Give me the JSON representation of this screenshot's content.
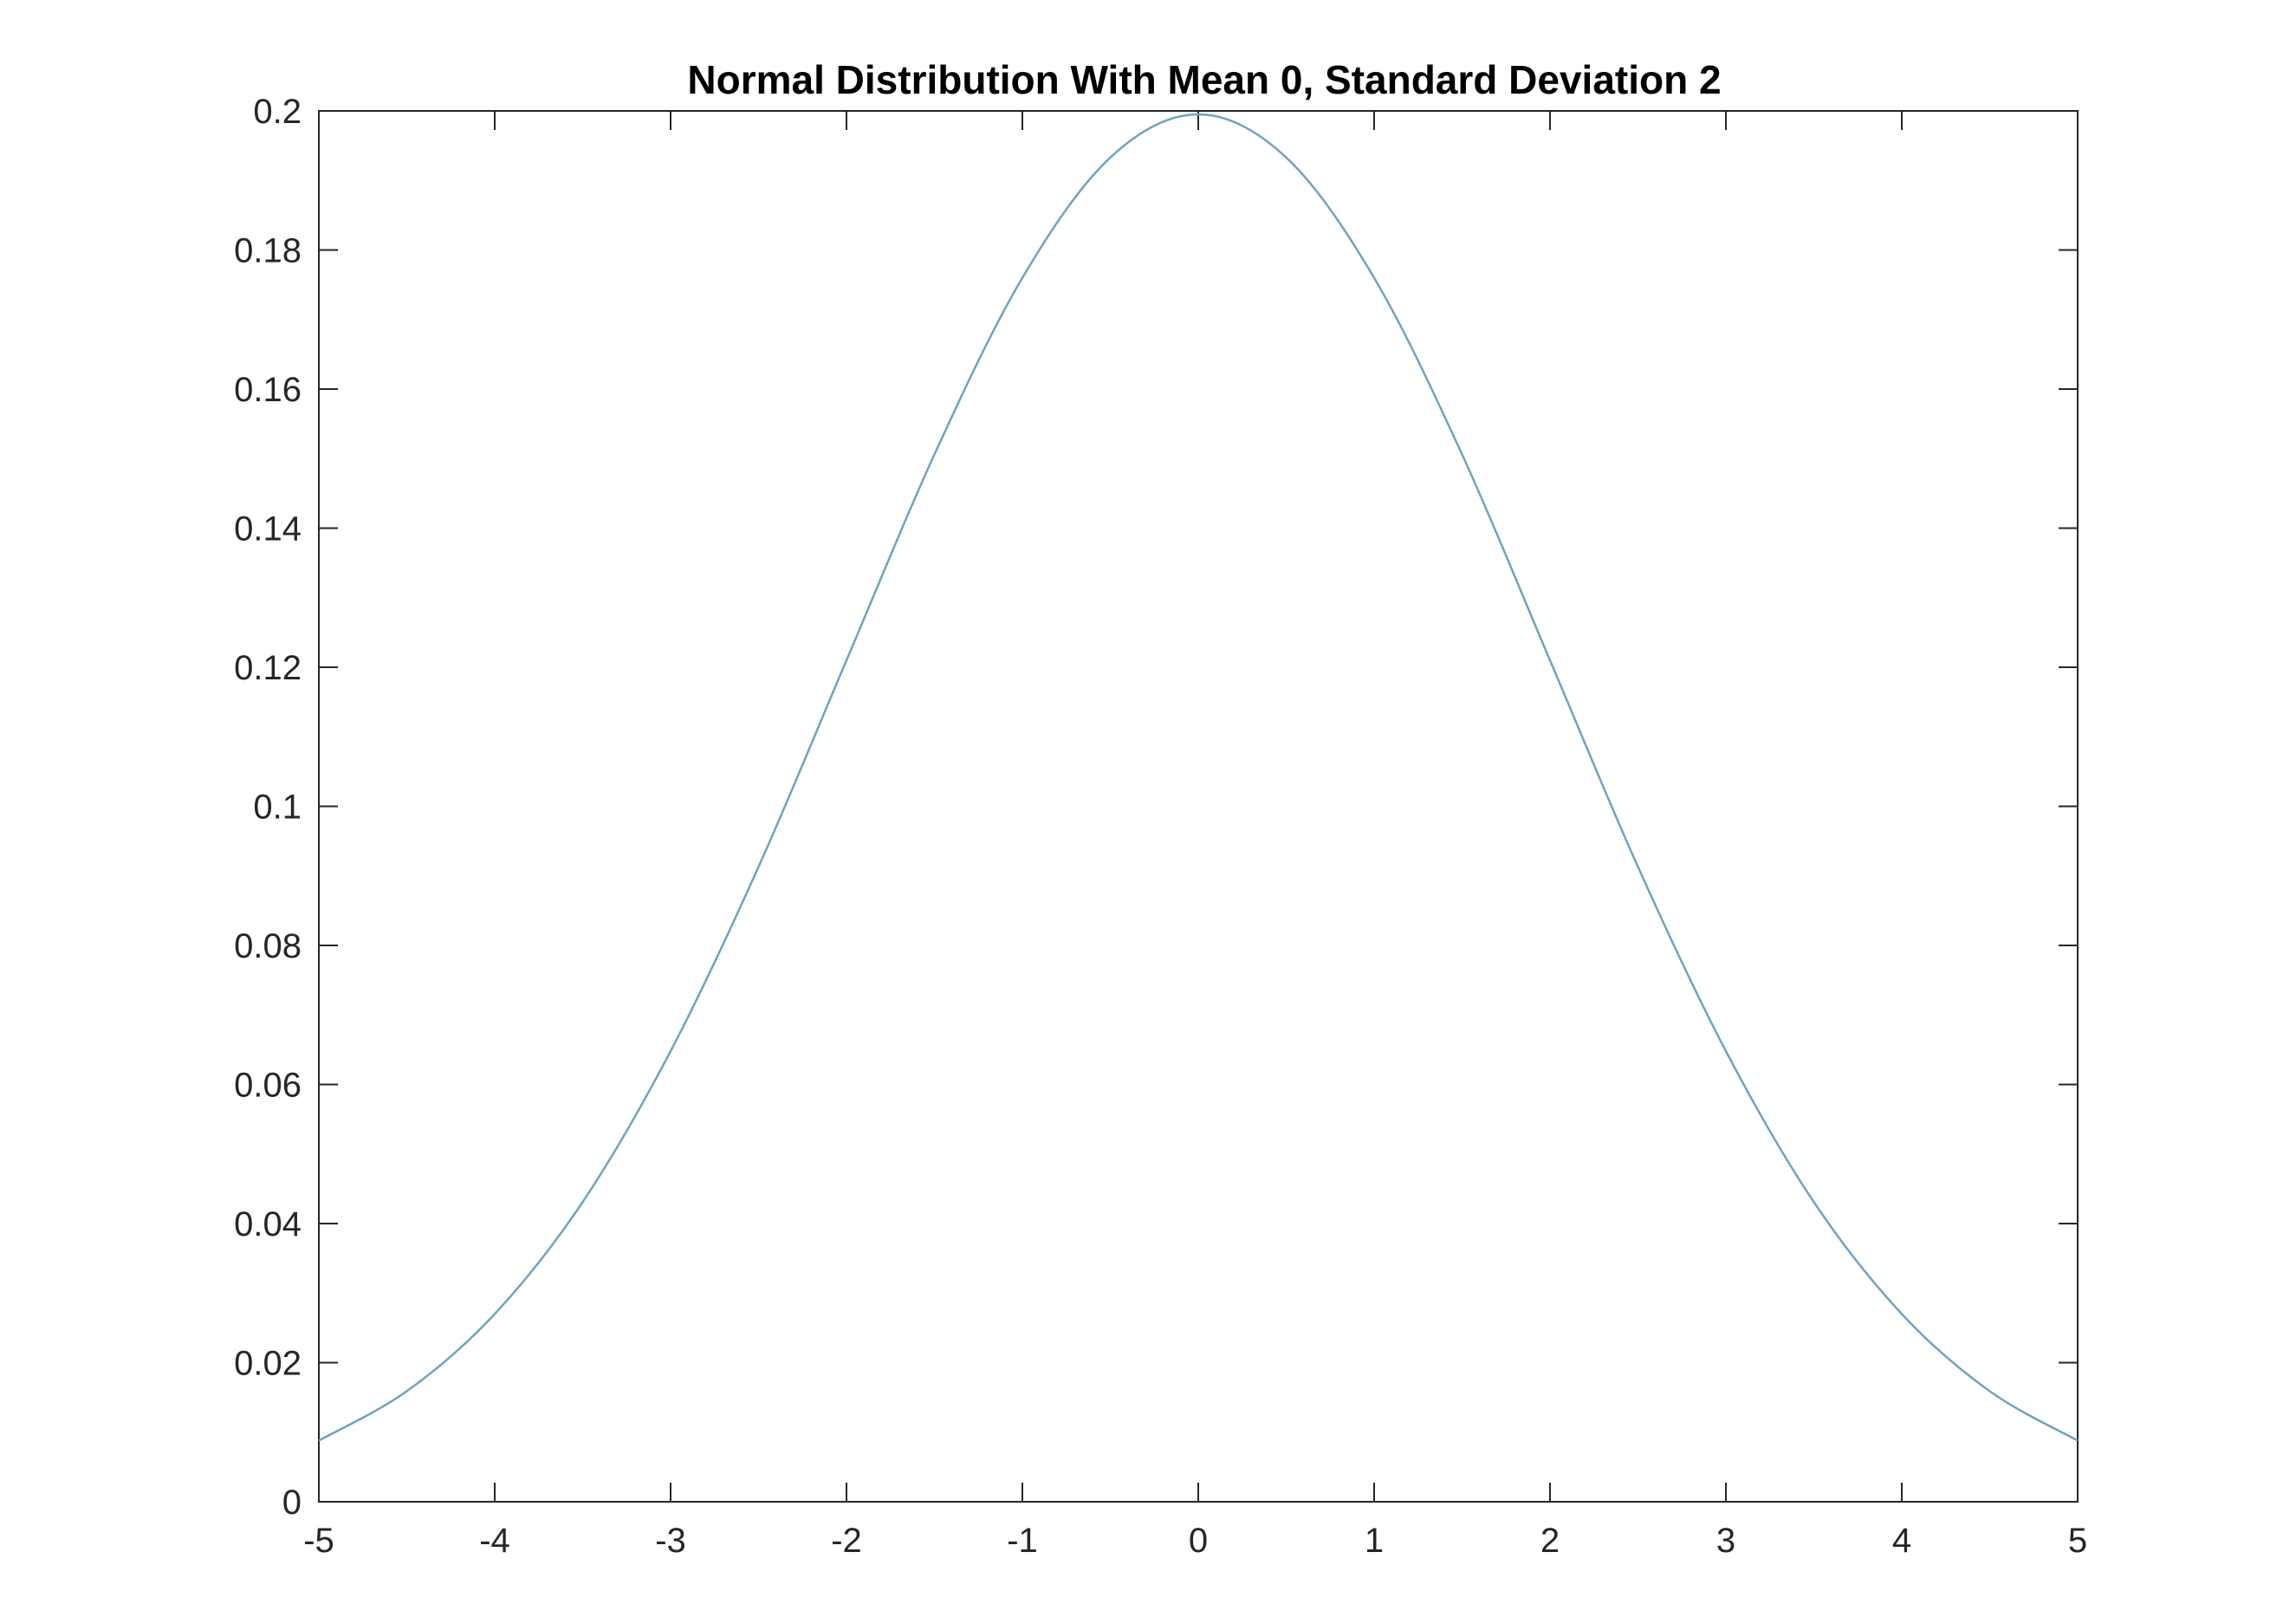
{
  "chart_data": {
    "type": "line",
    "title": "Normal Distribution With Mean 0, Standard Deviation 2",
    "xlabel": "",
    "ylabel": "",
    "xlim": [
      -5,
      5
    ],
    "ylim": [
      0,
      0.2
    ],
    "xticks": [
      -5,
      -4,
      -3,
      -2,
      -1,
      0,
      1,
      2,
      3,
      4,
      5
    ],
    "xtick_labels": [
      "-5",
      "-4",
      "-3",
      "-2",
      "-1",
      "0",
      "1",
      "2",
      "3",
      "4",
      "5"
    ],
    "yticks": [
      0,
      0.02,
      0.04,
      0.06,
      0.08,
      0.1,
      0.12,
      0.14,
      0.16,
      0.18,
      0.2
    ],
    "ytick_labels": [
      "0",
      "0.02",
      "0.04",
      "0.06",
      "0.08",
      "0.1",
      "0.12",
      "0.14",
      "0.16",
      "0.18",
      "0.2"
    ],
    "grid": false,
    "box": true,
    "series": [
      {
        "color": "#6fa3bd",
        "x": [
          -5,
          -4.5,
          -4,
          -3.5,
          -3,
          -2.5,
          -2,
          -1.5,
          -1,
          -0.5,
          0,
          0.5,
          1,
          1.5,
          2,
          2.5,
          3,
          3.5,
          4,
          4.5,
          5
        ],
        "y": [
          0.0088,
          0.0159,
          0.027,
          0.0431,
          0.0648,
          0.0913,
          0.121,
          0.1506,
          0.176,
          0.1933,
          0.1995,
          0.1933,
          0.176,
          0.1506,
          0.121,
          0.0913,
          0.0648,
          0.0431,
          0.027,
          0.0159,
          0.0088
        ]
      }
    ]
  }
}
